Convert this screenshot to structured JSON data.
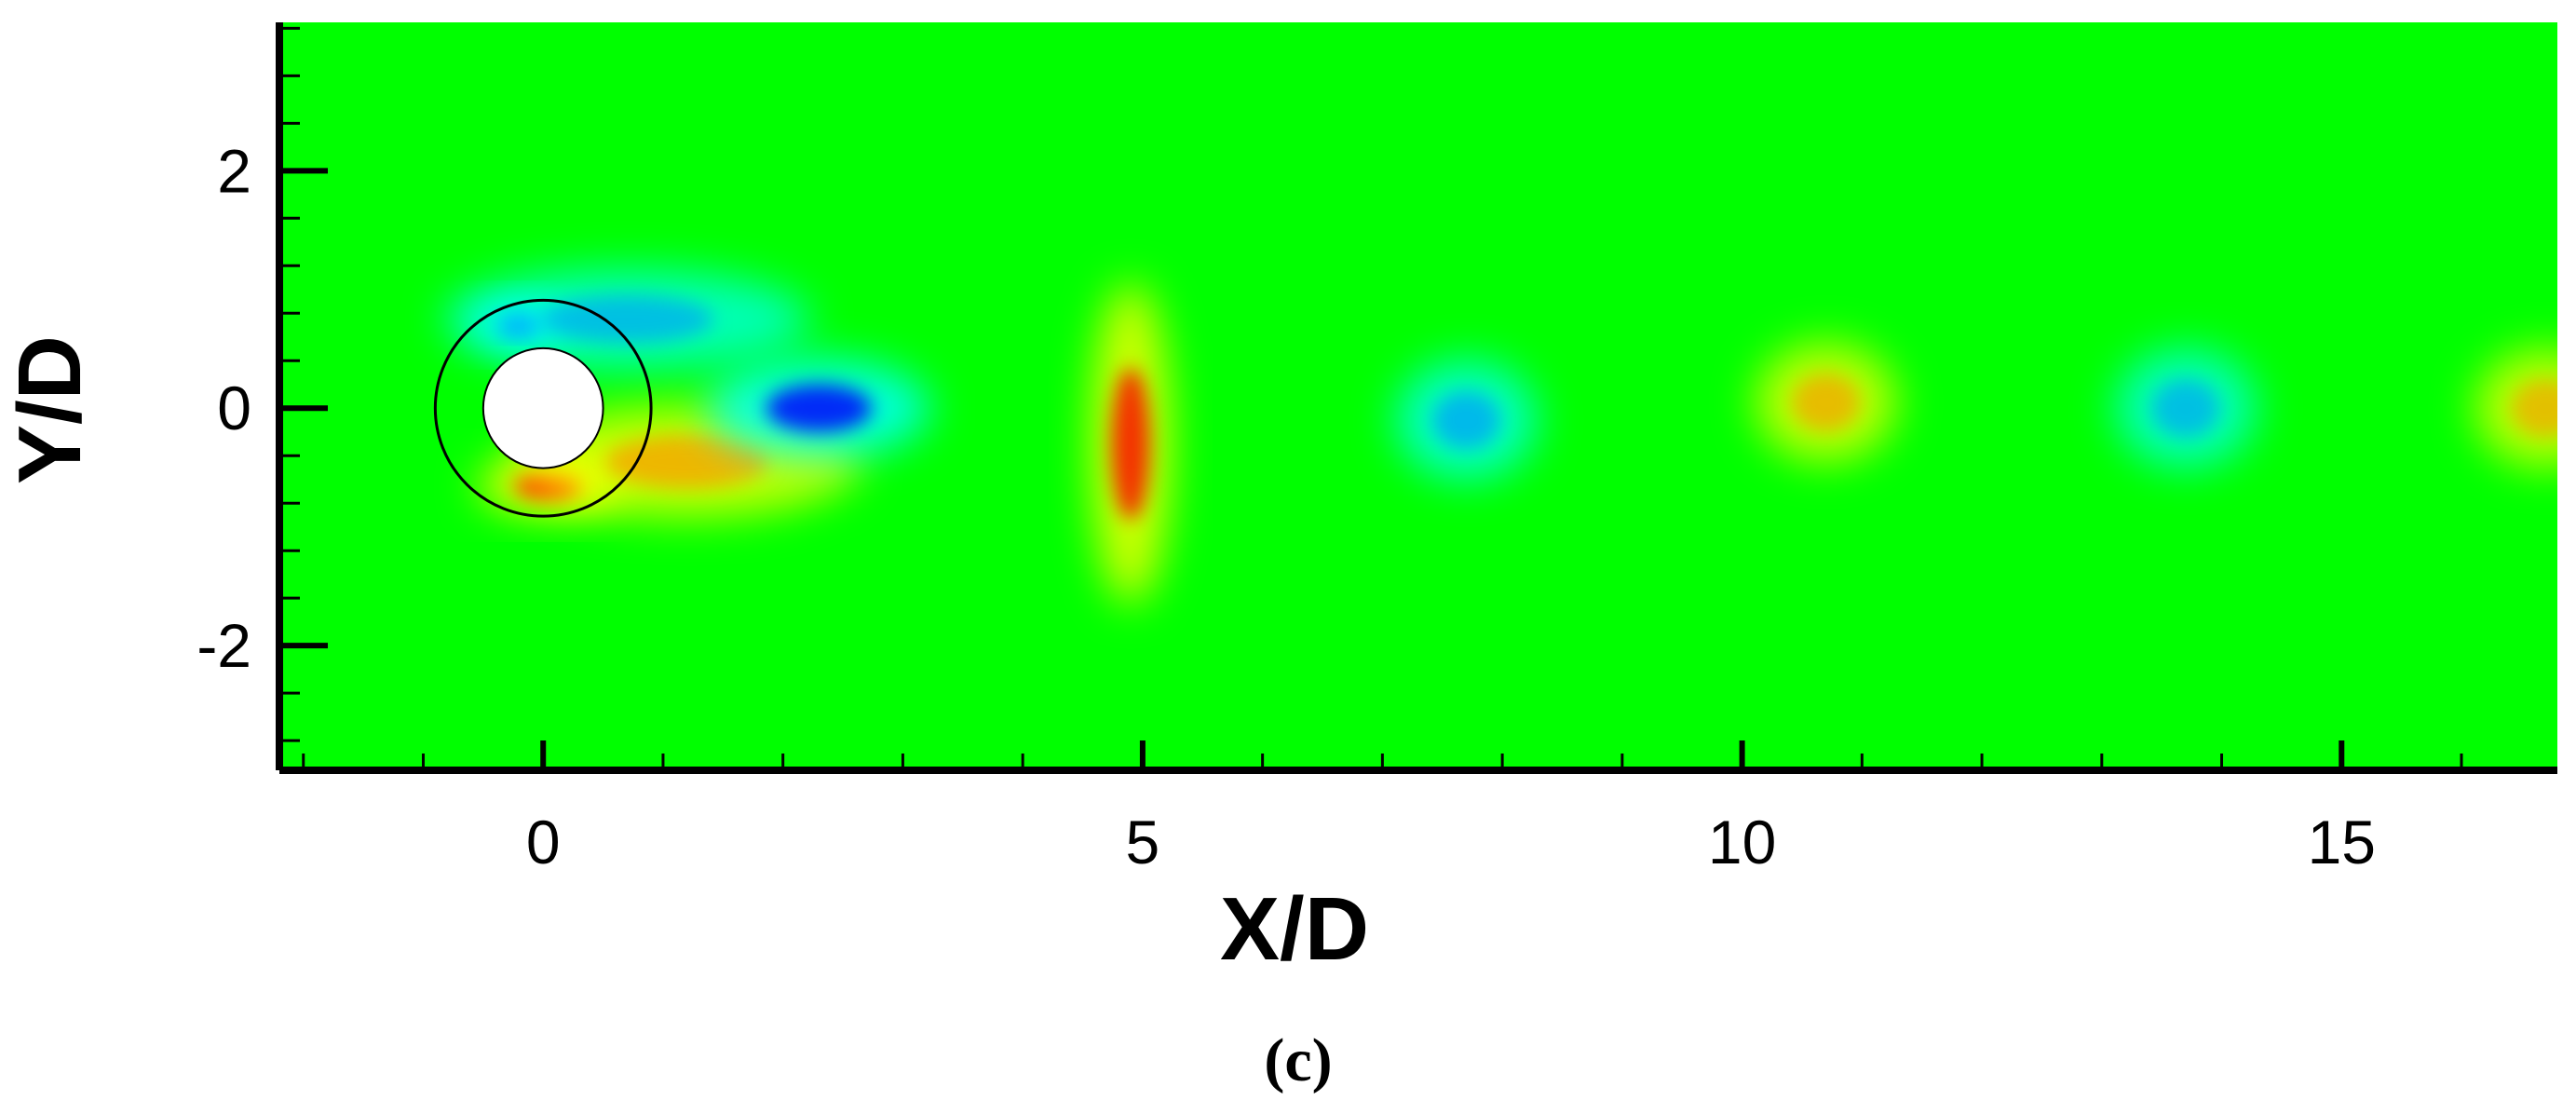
{
  "chart_data": {
    "type": "heatmap",
    "title": "",
    "panel_label": "(c)",
    "xlabel": "X/D",
    "ylabel": "Y/D",
    "xlim": [
      -2.2,
      16.8
    ],
    "ylim": [
      -3.05,
      3.25
    ],
    "x_ticks": [
      0,
      5,
      10,
      15
    ],
    "x_tick_labels": [
      "0",
      "5",
      "10",
      "15"
    ],
    "y_ticks": [
      -2,
      0,
      2
    ],
    "y_tick_labels": [
      "-2",
      "0",
      "2"
    ],
    "x_minor_step": 1,
    "y_minor_step": 0.4,
    "grid": false,
    "legend": "none",
    "colormap": [
      "#0000ff",
      "#00ffff",
      "#00ff00",
      "#ffff00",
      "#ff0000"
    ],
    "background_color": "#00ff00",
    "field": "contour field around a circular cylinder with alternating vortex wake",
    "cylinder": {
      "center": [
        0,
        0
      ],
      "diameter": 1,
      "fill": "#ffffff"
    },
    "outer_circle": {
      "center": [
        0,
        0
      ],
      "diameter": 1.8
    },
    "features": [
      {
        "kind": "vortex",
        "sign": "negative",
        "x": -0.2,
        "y": 0.7,
        "rx": 0.22,
        "ry": 0.11,
        "strength": 1.0
      },
      {
        "kind": "shear-layer",
        "sign": "negative",
        "x": 0.7,
        "y": 0.75,
        "rx": 0.9,
        "ry": 0.25,
        "strength": 0.45
      },
      {
        "kind": "vortex",
        "sign": "positive",
        "x": 0.05,
        "y": -0.65,
        "rx": 0.35,
        "ry": 0.14,
        "strength": 1.0
      },
      {
        "kind": "shear-layer",
        "sign": "positive",
        "x": 1.2,
        "y": -0.45,
        "rx": 0.85,
        "ry": 0.28,
        "strength": 0.6
      },
      {
        "kind": "vortex",
        "sign": "negative",
        "x": 2.3,
        "y": 0.0,
        "rx": 0.55,
        "ry": 0.25,
        "strength": 0.8
      },
      {
        "kind": "vortex",
        "sign": "positive",
        "x": 4.9,
        "y": -0.3,
        "rx": 0.2,
        "ry": 0.8,
        "strength": 0.75
      },
      {
        "kind": "vortex",
        "sign": "negative",
        "x": 7.7,
        "y": -0.1,
        "rx": 0.35,
        "ry": 0.3,
        "strength": 0.55
      },
      {
        "kind": "vortex",
        "sign": "positive",
        "x": 10.7,
        "y": 0.05,
        "rx": 0.35,
        "ry": 0.3,
        "strength": 0.5
      },
      {
        "kind": "vortex",
        "sign": "negative",
        "x": 13.7,
        "y": 0.0,
        "rx": 0.35,
        "ry": 0.3,
        "strength": 0.45
      },
      {
        "kind": "vortex",
        "sign": "positive",
        "x": 16.7,
        "y": 0.0,
        "rx": 0.35,
        "ry": 0.3,
        "strength": 0.45
      }
    ]
  }
}
